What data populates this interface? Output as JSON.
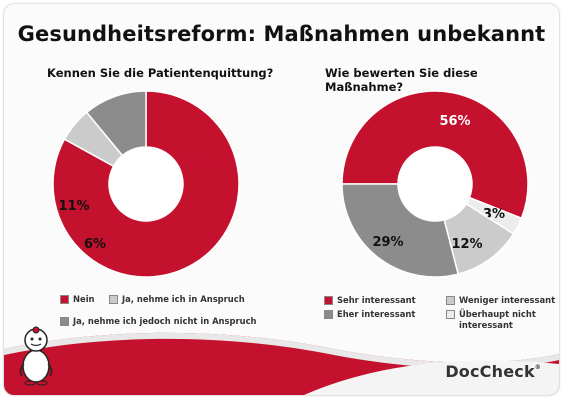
{
  "title": "Gesundheitsreform: Maßnahmen unbekannt",
  "colors": {
    "crimson": "#c4112e",
    "dark_gray": "#8c8c8c",
    "light_gray": "#cbcbcb",
    "white_segment": "#ececec"
  },
  "logo_text": "DocCheck",
  "logo_mark": "®",
  "mascot_icon": "doctor-mascot-icon",
  "chart_data": [
    {
      "type": "pie",
      "variant": "donut",
      "title": "Kennen Sie die Patientenquittung?",
      "slices": [
        {
          "label": "Nein",
          "value": 83,
          "value_label": "83%",
          "color": "#c4112e",
          "label_color": "#c4112e"
        },
        {
          "label": "Ja, nehme ich in Anspruch",
          "value": 6,
          "value_label": "6%",
          "color": "#cbcbcb",
          "label_color": "#111111"
        },
        {
          "label": "Ja, nehme ich jedoch nicht in Anspruch",
          "value": 11,
          "value_label": "11%",
          "color": "#8c8c8c",
          "label_color": "#111111"
        }
      ],
      "legend": [
        {
          "label": "Nein",
          "color": "#c4112e"
        },
        {
          "label": "Ja, nehme ich in Anspruch",
          "color": "#cbcbcb"
        },
        {
          "label": "Ja, nehme ich jedoch nicht in Anspruch",
          "color": "#8c8c8c"
        }
      ],
      "legend_position": "bottom"
    },
    {
      "type": "pie",
      "variant": "donut",
      "title": "Wie bewerten Sie diese Maßnahme?",
      "slices": [
        {
          "label": "Sehr interessant",
          "value": 56,
          "value_label": "56%",
          "color": "#c4112e",
          "label_color": "#ffffff"
        },
        {
          "label": "Überhaupt nicht interessant",
          "value": 3,
          "value_label": "3%",
          "color": "#ececec",
          "label_color": "#111111"
        },
        {
          "label": "Weniger interessant",
          "value": 12,
          "value_label": "12%",
          "color": "#cbcbcb",
          "label_color": "#111111"
        },
        {
          "label": "Eher interessant",
          "value": 29,
          "value_label": "29%",
          "color": "#8c8c8c",
          "label_color": "#111111"
        }
      ],
      "legend": [
        {
          "label": "Sehr interessant",
          "color": "#c4112e"
        },
        {
          "label": "Eher interessant",
          "color": "#8c8c8c"
        },
        {
          "label": "Weniger interessant",
          "color": "#cbcbcb"
        },
        {
          "label": "Überhaupt nicht interessant",
          "color": "#ececec"
        }
      ],
      "legend_position": "bottom"
    }
  ]
}
